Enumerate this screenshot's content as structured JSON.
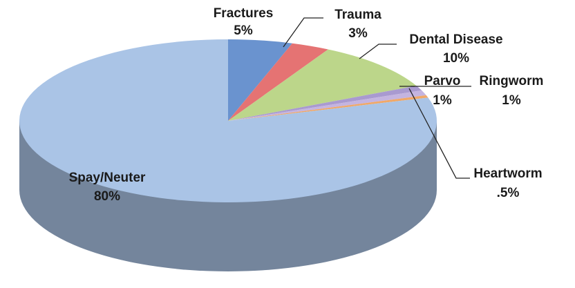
{
  "chart_data": {
    "type": "pie",
    "categories": [
      "Fractures",
      "Trauma",
      "Dental Disease",
      "Parvo",
      "Ringworm",
      "Heartworm",
      "Spay/Neuter"
    ],
    "values": [
      5,
      3,
      10,
      1,
      1,
      0.5,
      80
    ],
    "value_labels": [
      "5%",
      "3%",
      "10%",
      "1%",
      "1%",
      ".5%",
      "80%"
    ],
    "colors": [
      "#6a93cf",
      "#e57373",
      "#bcd68a",
      "#a99ad0",
      "#c4b4e0",
      "#f0a868",
      "#aac4e6"
    ]
  }
}
